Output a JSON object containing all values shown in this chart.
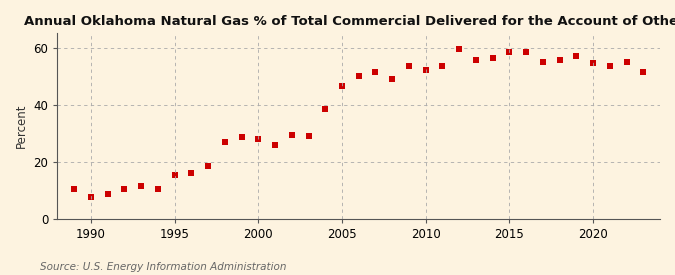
{
  "title": "Annual Oklahoma Natural Gas % of Total Commercial Delivered for the Account of Others",
  "ylabel": "Percent",
  "source": "Source: U.S. Energy Information Administration",
  "background_color": "#fdf3e0",
  "plot_background_color": "#fdf3e0",
  "marker_color": "#cc0000",
  "grid_color": "#aaaaaa",
  "years": [
    1989,
    1990,
    1991,
    1992,
    1993,
    1994,
    1995,
    1996,
    1997,
    1998,
    1999,
    2000,
    2001,
    2002,
    2003,
    2004,
    2005,
    2006,
    2007,
    2008,
    2009,
    2010,
    2011,
    2012,
    2013,
    2014,
    2015,
    2016,
    2017,
    2018,
    2019,
    2020,
    2021,
    2022,
    2023
  ],
  "values": [
    10.5,
    7.5,
    8.5,
    10.5,
    11.5,
    10.5,
    15.5,
    16.0,
    18.5,
    27.0,
    28.5,
    28.0,
    26.0,
    29.5,
    29.0,
    38.5,
    46.5,
    50.0,
    51.5,
    49.0,
    53.5,
    52.0,
    53.5,
    59.5,
    55.5,
    56.5,
    58.5,
    58.5,
    55.0,
    55.5,
    57.0,
    54.5,
    53.5,
    55.0,
    51.5
  ],
  "xlim": [
    1988.0,
    2024.0
  ],
  "ylim": [
    0,
    65
  ],
  "yticks": [
    0,
    20,
    40,
    60
  ],
  "xticks": [
    1990,
    1995,
    2000,
    2005,
    2010,
    2015,
    2020
  ],
  "vgrid_years": [
    1990,
    1995,
    2000,
    2005,
    2010,
    2015,
    2020
  ],
  "title_fontsize": 9.5,
  "label_fontsize": 8.5,
  "tick_fontsize": 8.5,
  "source_fontsize": 7.5
}
